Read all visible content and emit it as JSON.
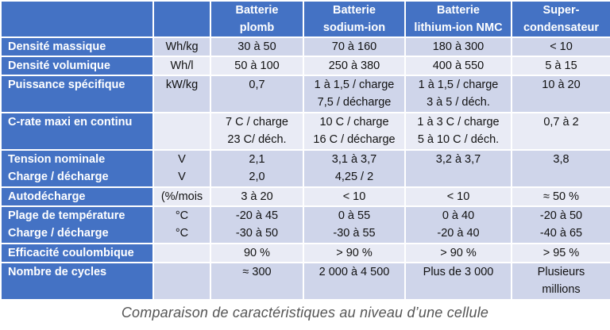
{
  "header": {
    "columns": [
      [
        "Batterie",
        "plomb"
      ],
      [
        "Batterie",
        "sodium-ion"
      ],
      [
        "Batterie",
        "lithium-ion NMC"
      ],
      [
        "Super-",
        "condensateur"
      ]
    ]
  },
  "rows": [
    {
      "labels": [
        "Densité massique"
      ],
      "units": [
        "Wh/kg"
      ],
      "cells": [
        [
          "30 à 50"
        ],
        [
          "70 à 160"
        ],
        [
          "180 à 300"
        ],
        [
          "< 10"
        ]
      ]
    },
    {
      "labels": [
        "Densité volumique"
      ],
      "units": [
        "Wh/l"
      ],
      "cells": [
        [
          "50 à 100"
        ],
        [
          "250 à 380"
        ],
        [
          "400 à 550"
        ],
        [
          "5 à 15"
        ]
      ]
    },
    {
      "labels": [
        "Puissance spécifique"
      ],
      "units": [
        "kW/kg"
      ],
      "cells": [
        [
          "0,7"
        ],
        [
          "1 à 1,5 / charge",
          "7,5 / décharge"
        ],
        [
          "1 à 1,5 / charge",
          "3 à 5 / déch."
        ],
        [
          "10 à 20"
        ]
      ]
    },
    {
      "labels": [
        "C-rate maxi en continu"
      ],
      "units": [
        ""
      ],
      "cells": [
        [
          "7 C / charge",
          "23 C/ déch."
        ],
        [
          "10 C / charge",
          "16 C / décharge"
        ],
        [
          "1 à 3 C / charge",
          "5 à 10 C / déch."
        ],
        [
          "0,7 à 2"
        ]
      ]
    },
    {
      "labels": [
        "Tension nominale",
        "Charge / décharge"
      ],
      "units": [
        "V",
        "V"
      ],
      "cells": [
        [
          "2,1",
          "2,0"
        ],
        [
          "3,1 à 3,7",
          "4,25 / 2"
        ],
        [
          "3,2 à 3,7"
        ],
        [
          "3,8"
        ]
      ]
    },
    {
      "labels": [
        "Autodécharge"
      ],
      "units": [
        "(%/mois"
      ],
      "cells": [
        [
          "3 à 20"
        ],
        [
          "< 10"
        ],
        [
          "< 10"
        ],
        [
          "≈ 50 %"
        ]
      ]
    },
    {
      "labels": [
        "Plage de température",
        "Charge / décharge"
      ],
      "units": [
        "°C",
        "°C"
      ],
      "cells": [
        [
          "-20 à 45",
          "-30 à 50"
        ],
        [
          "0 à 55",
          "-30 à 55"
        ],
        [
          "0 à 40",
          "-20 à 40"
        ],
        [
          "-20 à 50",
          "-40 à 65"
        ]
      ]
    },
    {
      "labels": [
        "Efficacité coulombique"
      ],
      "units": [
        ""
      ],
      "cells": [
        [
          "90 %"
        ],
        [
          "> 90 %"
        ],
        [
          "> 90 %"
        ],
        [
          "> 95 %"
        ]
      ]
    },
    {
      "labels": [
        "Nombre de cycles"
      ],
      "units": [
        ""
      ],
      "cells": [
        [
          "≈ 300"
        ],
        [
          "2 000 à 4 500"
        ],
        [
          "Plus de 3 000"
        ],
        [
          "Plusieurs",
          "millions"
        ]
      ]
    }
  ],
  "caption": "Comparaison de caractéristiques au niveau d’une cellule"
}
